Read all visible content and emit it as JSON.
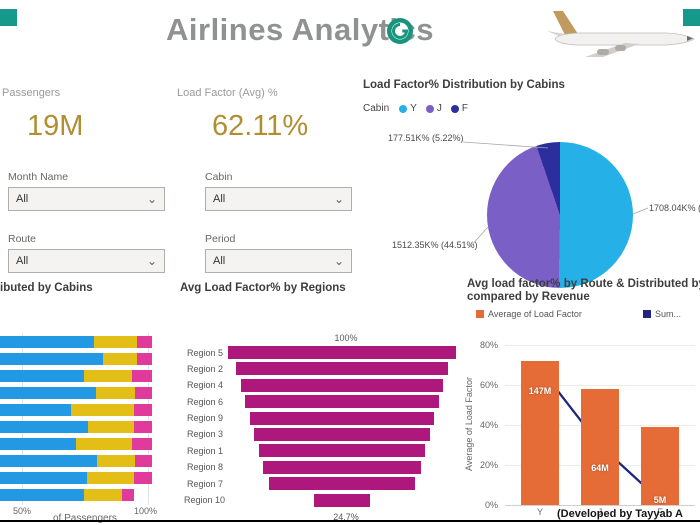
{
  "colors": {
    "teal_corner": "#16998A",
    "gold_kpi": "#B08F33",
    "title_gray": "#8F9193"
  },
  "header": {
    "title": "Airlines Analytics"
  },
  "kpis": {
    "passengers": {
      "label": "Passengers",
      "value": "19M"
    },
    "load_factor": {
      "label": "Load Factor (Avg) %",
      "value": "62.11%"
    }
  },
  "slicers": {
    "month": {
      "label": "Month Name",
      "value": "All"
    },
    "cabin": {
      "label": "Cabin",
      "value": "All"
    },
    "route": {
      "label": "Route",
      "value": "All"
    },
    "period": {
      "label": "Period",
      "value": "All"
    }
  },
  "credit": "(Developed by Tayyab A",
  "chart_data": [
    {
      "type": "pie",
      "title": "Load Factor% Distribution by Cabins",
      "legend_title": "Cabin",
      "slices": [
        {
          "label": "Y",
          "pct": 50.27,
          "color": "#25B0E8",
          "callout": "1708.04K% (50.27%)"
        },
        {
          "label": "J",
          "pct": 44.51,
          "color": "#7A5FC7",
          "callout": "1512.35K% (44.51%)"
        },
        {
          "label": "F",
          "pct": 5.22,
          "color": "#2D2E9E",
          "callout": "177.51K% (5.22%)"
        }
      ]
    },
    {
      "type": "bar",
      "subtype": "horizontal-stacked",
      "title": "ibuted by Cabins",
      "xlabel": "of Passengers",
      "x_ticks": [
        "50%",
        "100%"
      ],
      "colors": [
        "#2499E3",
        "#E2BE17",
        "#E03A9C"
      ],
      "rows": [
        [
          62,
          28,
          10
        ],
        [
          68,
          22,
          10
        ],
        [
          55,
          32,
          13
        ],
        [
          63,
          26,
          11
        ],
        [
          47,
          41,
          12
        ],
        [
          58,
          30,
          12
        ],
        [
          50,
          37,
          13
        ],
        [
          64,
          25,
          11
        ],
        [
          57,
          31,
          12
        ],
        [
          55,
          25,
          8
        ]
      ]
    },
    {
      "type": "funnel",
      "title": "Avg Load Factor% by Regions",
      "top_label": "100%",
      "bottom_label": "24.7%",
      "color": "#AE177C",
      "rows": [
        {
          "label": "Region 5",
          "width_pct": 100
        },
        {
          "label": "Region 2",
          "width_pct": 93
        },
        {
          "label": "Region 4",
          "width_pct": 89
        },
        {
          "label": "Region 6",
          "width_pct": 85
        },
        {
          "label": "Region 9",
          "width_pct": 81
        },
        {
          "label": "Region 3",
          "width_pct": 77
        },
        {
          "label": "Region 1",
          "width_pct": 73
        },
        {
          "label": "Region 8",
          "width_pct": 69
        },
        {
          "label": "Region 7",
          "width_pct": 64
        },
        {
          "label": "Region 10",
          "width_pct": 24.7
        }
      ]
    },
    {
      "type": "bar",
      "subtype": "bar-line-combo",
      "title_line1": "Avg load factor% by Route & Distributed by Ca",
      "title_line2": "compared by Revenue",
      "legend": [
        "Average of Load Factor",
        "Sum..."
      ],
      "ylabel": "Average of Load Factor",
      "y_ticks": [
        "80%",
        "60%",
        "40%",
        "20%",
        "0%"
      ],
      "categories": [
        "Y",
        "J",
        "F"
      ],
      "bars_pct": [
        72,
        58,
        39
      ],
      "bar_color": "#E66C37",
      "line_color": "#20257E",
      "line_labels": [
        "147M",
        "64M",
        "5M"
      ],
      "line_values": [
        147,
        64,
        5
      ]
    }
  ]
}
